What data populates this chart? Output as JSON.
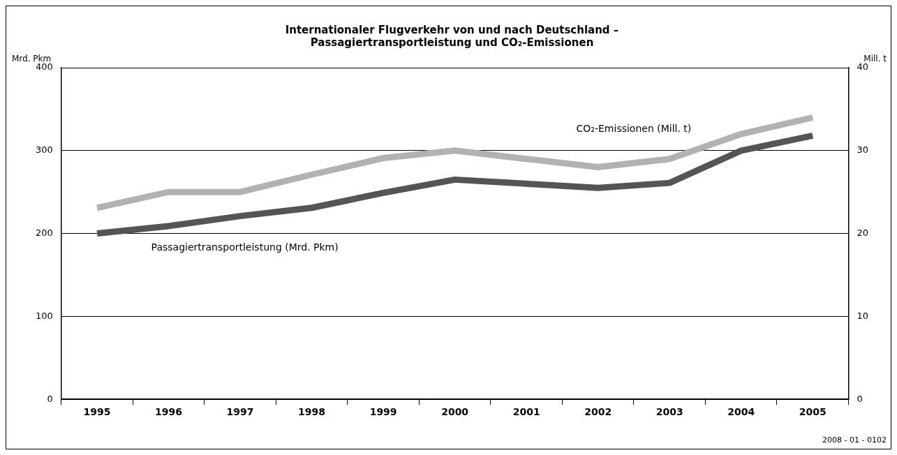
{
  "chart_data": {
    "type": "line",
    "title": "Internationaler Flugverkehr von und nach Deutschland –\nPassagiertransportleistung und CO₂-Emissionen",
    "ylabel": "Mrd. Pkm",
    "y2label": "Mill. t",
    "categories": [
      "1995",
      "1996",
      "1997",
      "1998",
      "1999",
      "2000",
      "2001",
      "2002",
      "2003",
      "2004",
      "2005"
    ],
    "series": [
      {
        "name": "Passagiertransportleistung (Mrd. Pkm)",
        "color": "#555555",
        "values": [
          200,
          209,
          221,
          231,
          249,
          265,
          260,
          255,
          261,
          300,
          318
        ]
      },
      {
        "name": "CO₂-Emissionen (Mill. t)",
        "color": "#b2b2b2",
        "axis": "y2",
        "values": [
          23.1,
          25,
          25,
          27.1,
          29.1,
          30,
          29,
          28,
          29,
          32,
          34
        ]
      }
    ],
    "ylim": [
      0,
      400
    ],
    "yticks": [
      0,
      100,
      200,
      300,
      400
    ],
    "y2lim": [
      0,
      40
    ],
    "y2ticks": [
      0,
      10,
      20,
      30,
      40
    ],
    "grid": "y",
    "legend": false,
    "line_style": "solid",
    "annotations": [
      "2008 - 01 - 0102"
    ]
  }
}
